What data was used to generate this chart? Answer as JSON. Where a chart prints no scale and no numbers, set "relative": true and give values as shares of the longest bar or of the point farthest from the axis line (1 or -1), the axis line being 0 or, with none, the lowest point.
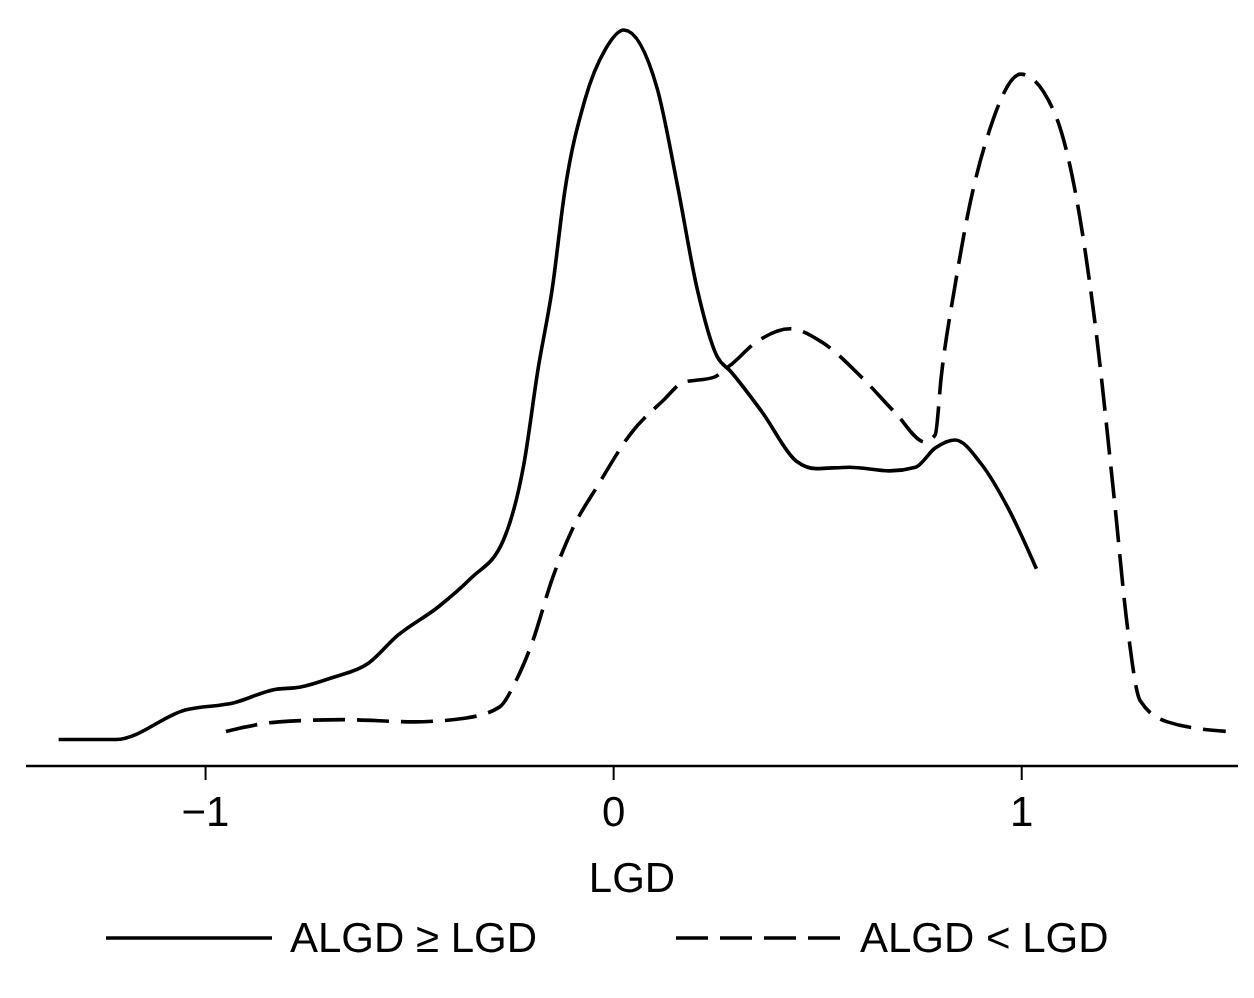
{
  "chart_data": {
    "type": "line",
    "relative": true,
    "xlabel": "LGD",
    "xlim": [
      -1.44,
      1.53
    ],
    "xticks": [
      {
        "value": -1,
        "label": "−1"
      },
      0,
      1
    ],
    "legend": "bottom",
    "tick_labels": "x",
    "series": [
      {
        "name": "ALGD ≥ LGD",
        "color": "#000000",
        "line_style": "solid",
        "x": [
          -1.36,
          -1.22,
          -1.05,
          -0.93,
          -0.83,
          -0.77,
          -0.69,
          -0.6,
          -0.53,
          -0.43,
          -0.35,
          -0.27,
          -0.22,
          -0.185,
          -0.15,
          -0.12,
          -0.07,
          -0.02,
          0.025,
          0.107,
          0.156,
          0.204,
          0.253,
          0.287,
          0.365,
          0.448,
          0.496,
          0.579,
          0.676,
          0.74,
          0.788,
          0.837,
          0.9,
          0.968,
          1.036
        ],
        "values": [
          0.036,
          0.036,
          0.076,
          0.086,
          0.104,
          0.107,
          0.12,
          0.14,
          0.177,
          0.216,
          0.255,
          0.307,
          0.41,
          0.54,
          0.65,
          0.78,
          0.906,
          0.974,
          1,
          0.92,
          0.79,
          0.65,
          0.557,
          0.536,
          0.48,
          0.414,
          0.404,
          0.406,
          0.401,
          0.406,
          0.432,
          0.443,
          0.411,
          0.349,
          0.268
        ]
      },
      {
        "name": "ALGD < LGD",
        "color": "#000000",
        "line_style": "dashed",
        "x": [
          -0.95,
          -0.82,
          -0.66,
          -0.49,
          -0.365,
          -0.28,
          -0.24,
          -0.2,
          -0.15,
          -0.1,
          -0.04,
          0.044,
          0.122,
          0.17,
          0.245,
          0.287,
          0.35,
          0.433,
          0.51,
          0.608,
          0.69,
          0.764,
          0.788,
          0.803,
          0.837,
          0.871,
          0.92,
          0.998,
          1.08,
          1.13,
          1.18,
          1.226,
          1.26,
          1.29,
          1.357,
          1.5
        ],
        "values": [
          0.047,
          0.06,
          0.063,
          0.06,
          0.065,
          0.08,
          0.115,
          0.167,
          0.255,
          0.323,
          0.38,
          0.453,
          0.497,
          0.521,
          0.528,
          0.545,
          0.576,
          0.594,
          0.576,
          0.528,
          0.48,
          0.44,
          0.45,
          0.53,
          0.654,
          0.758,
          0.862,
          0.94,
          0.888,
          0.784,
          0.6,
          0.367,
          0.185,
          0.089,
          0.06,
          0.047
        ]
      }
    ]
  }
}
